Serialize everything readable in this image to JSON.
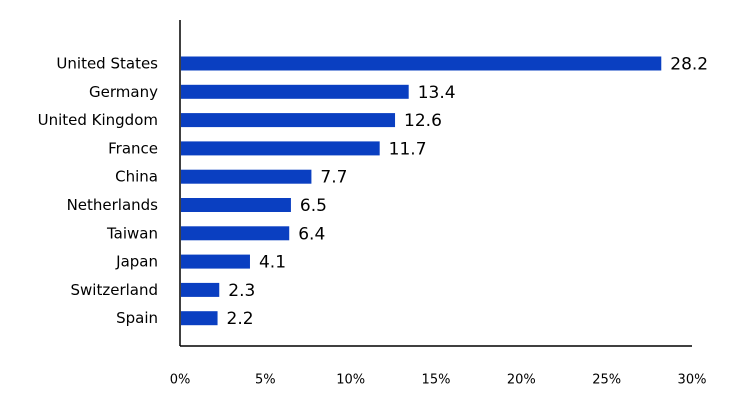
{
  "chart_data": {
    "type": "bar",
    "orientation": "horizontal",
    "categories": [
      "United States",
      "Germany",
      "United Kingdom",
      "France",
      "China",
      "Netherlands",
      "Taiwan",
      "Japan",
      "Switzerland",
      "Spain"
    ],
    "values": [
      28.2,
      13.4,
      12.6,
      11.7,
      7.7,
      6.5,
      6.4,
      4.1,
      2.3,
      2.2
    ],
    "value_labels": [
      "28.2",
      "13.4",
      "12.6",
      "11.7",
      "7.7",
      "6.5",
      "6.4",
      "4.1",
      "2.3",
      "2.2"
    ],
    "xlim": [
      0,
      30
    ],
    "x_ticks": [
      0,
      5,
      10,
      15,
      20,
      25,
      30
    ],
    "x_tick_labels": [
      "0%",
      "5%",
      "10%",
      "15%",
      "20%",
      "25%",
      "30%"
    ],
    "title": "",
    "xlabel": "",
    "ylabel": "",
    "grid": false,
    "legend": "none",
    "bar_color": "#0a3fc1"
  }
}
